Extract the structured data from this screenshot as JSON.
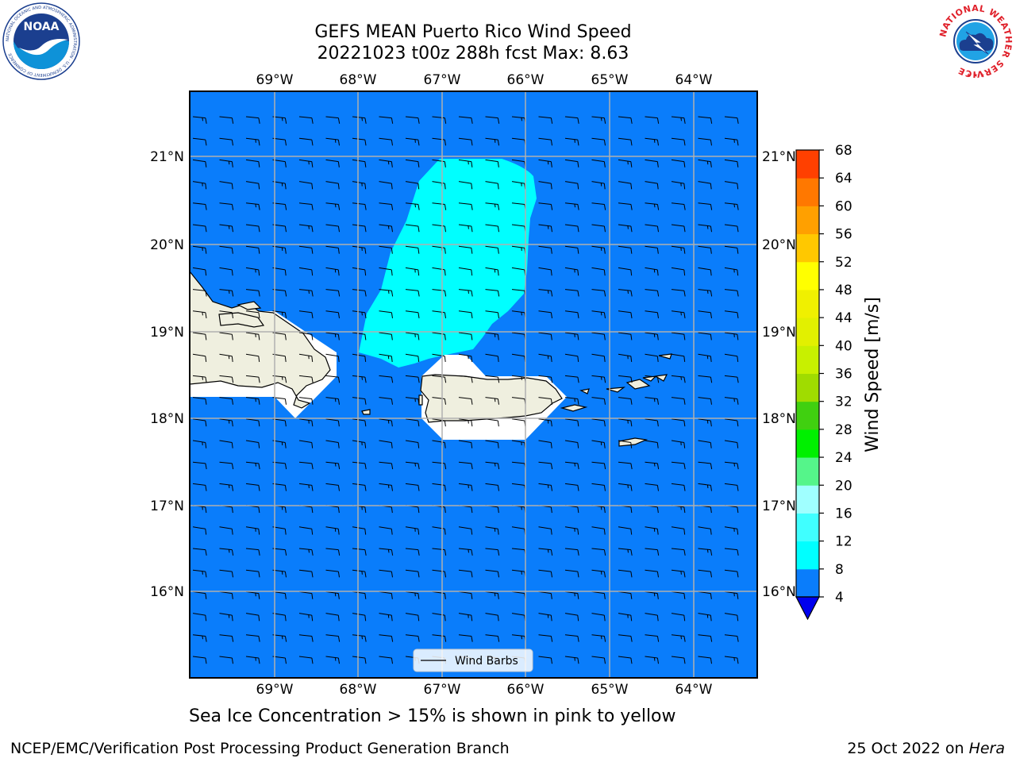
{
  "header": {
    "title_line1": "GEFS MEAN Puerto Rico Wind Speed",
    "title_line2": "20221023 t00z 288h fcst   Max: 8.63"
  },
  "map": {
    "lon_labels": [
      "69°W",
      "68°W",
      "67°W",
      "66°W",
      "65°W",
      "64°W"
    ],
    "lat_labels": [
      "21°N",
      "20°N",
      "19°N",
      "18°N",
      "17°N",
      "16°N"
    ],
    "legend_label": "Wind Barbs",
    "ocean_color": "#0a7dfb",
    "high_wind_color": "#00ffff",
    "land_color": "#efefdf",
    "masked_color": "#ffffff"
  },
  "colorbar": {
    "label": "Wind Speed [m/s]",
    "ticks": [
      "4",
      "8",
      "12",
      "16",
      "20",
      "24",
      "28",
      "32",
      "36",
      "40",
      "44",
      "48",
      "52",
      "56",
      "60",
      "64",
      "68"
    ],
    "under_color": "#0000ee",
    "colors": [
      "#0a7dfb",
      "#00ffff",
      "#40ffff",
      "#a0ffff",
      "#55f58a",
      "#00f000",
      "#40d010",
      "#a0dc00",
      "#c8f000",
      "#e2f000",
      "#f0f000",
      "#ffff00",
      "#ffc800",
      "#ffa000",
      "#ff7800",
      "#ff4000",
      "#ff0000"
    ]
  },
  "footer": {
    "caption": "Sea Ice Concentration > 15% is shown in pink to yellow",
    "credit": "NCEP/EMC/Verification Post Processing Product Generation Branch",
    "date": "25 Oct 2022 on",
    "machine": "Hera"
  },
  "logos": {
    "noaa": "NOAA",
    "noaa_ring": "NATIONAL OCEANIC AND ATMOSPHERIC ADMINISTRATION · U.S. DEPARTMENT OF COMMERCE",
    "nws_ring": "NATIONAL WEATHER SERVICE"
  }
}
